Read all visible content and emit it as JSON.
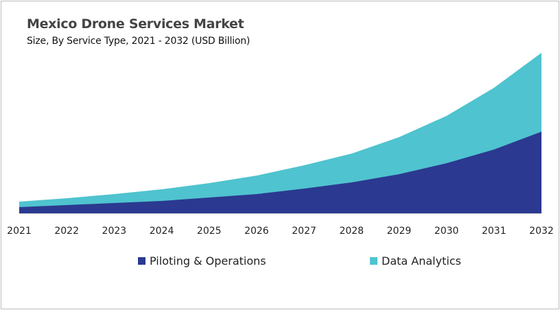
{
  "chart_data": {
    "type": "area",
    "stacked": true,
    "title": "Mexico Drone Services Market",
    "subtitle": "Size, By Service Type, 2021 - 2032 (USD Billion)",
    "xlabel": "",
    "ylabel": "",
    "categories": [
      "2021",
      "2022",
      "2023",
      "2024",
      "2025",
      "2026",
      "2027",
      "2028",
      "2029",
      "2030",
      "2031",
      "2032"
    ],
    "series": [
      {
        "name": "Piloting & Operations",
        "color": "#2b3990",
        "values": [
          0.09,
          0.12,
          0.15,
          0.18,
          0.23,
          0.28,
          0.36,
          0.45,
          0.57,
          0.73,
          0.93,
          1.19
        ]
      },
      {
        "name": "Data Analytics",
        "color": "#4fc3cf",
        "values": [
          0.08,
          0.1,
          0.13,
          0.17,
          0.21,
          0.27,
          0.34,
          0.42,
          0.54,
          0.69,
          0.9,
          1.15
        ]
      }
    ],
    "ylim": [
      0,
      2.4
    ],
    "grid": false,
    "y_axis_shown": false,
    "legend_position": "bottom"
  }
}
